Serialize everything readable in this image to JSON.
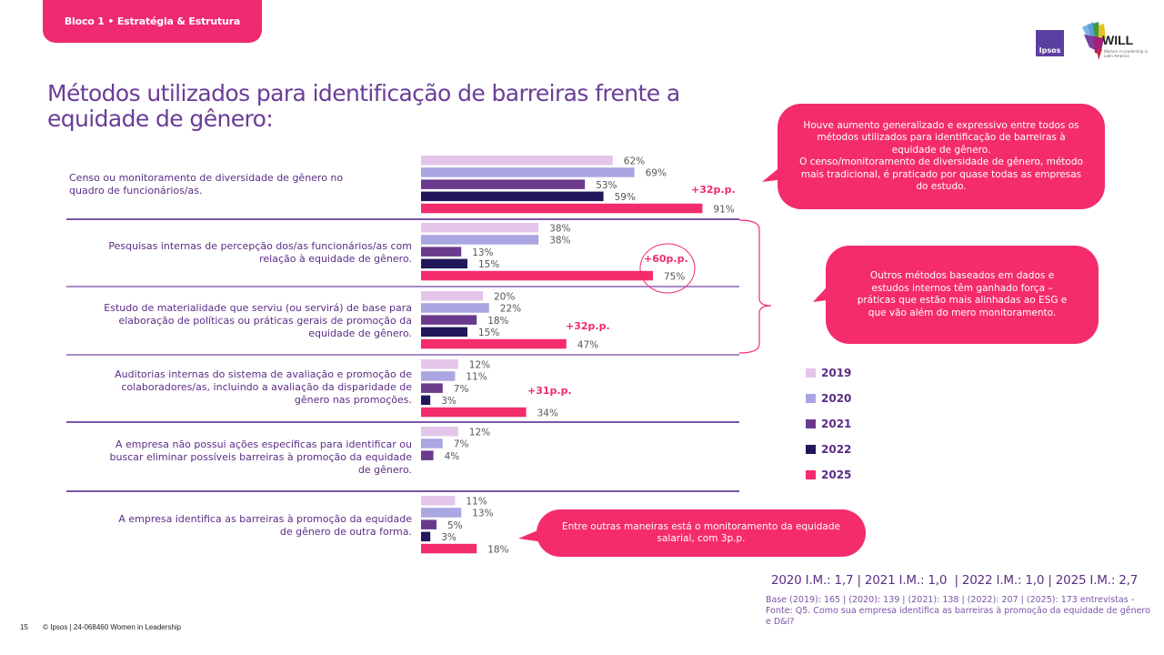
{
  "header": {
    "block_label": "Bloco 1 • Estratégia & Estrutura",
    "logos": {
      "ipsos": "Ipsos",
      "will": "WILL",
      "will_sub": "Women in Leadership in Latin America"
    }
  },
  "title": "Métodos utilizados para identificação de barreiras frente a equidade de gênero:",
  "colors": {
    "2019": "#e3c6ea",
    "2020": "#a9a6e1",
    "2021": "#6a3b8c",
    "2022": "#21175a",
    "2025": "#f42c6c",
    "accent": "#ef2a72",
    "text_purple": "#5b2d86"
  },
  "chart_data": {
    "type": "bar",
    "orientation": "horizontal",
    "title": "Métodos utilizados para identificação de barreiras frente a equidade de gênero:",
    "xlabel": "",
    "ylabel": "",
    "xlim": [
      0,
      100
    ],
    "unit": "%",
    "grid": false,
    "legend_position": "right",
    "series_names": [
      "2019",
      "2020",
      "2021",
      "2022",
      "2025"
    ],
    "categories": [
      "Censo ou monitoramento de diversidade de gênero no quadro de funcionários/as.",
      "Pesquisas internas de percepção dos/as funcionários/as com relação à equidade de gênero.",
      "Estudo de materialidade que serviu (ou servirá) de base para elaboração de políticas ou práticas gerais de promoção da equidade de gênero.",
      "Auditorias internas do sistema de avaliação e promoção de colaboradores/as, incluindo a avaliação da disparidade de gênero nas promoções.",
      "A empresa não possui ações específicas para identificar ou buscar eliminar possíveis barreiras à promoção da equidade de gênero.",
      "A empresa identifica as barreiras à promoção da equidade de gênero de outra forma."
    ],
    "series": [
      {
        "name": "2019",
        "values": [
          62,
          38,
          20,
          12,
          12,
          11
        ]
      },
      {
        "name": "2020",
        "values": [
          69,
          38,
          22,
          11,
          7,
          13
        ]
      },
      {
        "name": "2021",
        "values": [
          53,
          13,
          18,
          7,
          4,
          5
        ]
      },
      {
        "name": "2022",
        "values": [
          59,
          15,
          15,
          3,
          null,
          3
        ]
      },
      {
        "name": "2025",
        "values": [
          91,
          75,
          47,
          34,
          null,
          18
        ]
      }
    ],
    "annotations": [
      {
        "category_index": 0,
        "text": "+32p.p.",
        "circled": false
      },
      {
        "category_index": 1,
        "text": "+60p.p.",
        "circled": true
      },
      {
        "category_index": 2,
        "text": "+32p.p.",
        "circled": false
      },
      {
        "category_index": 3,
        "text": "+31p.p.",
        "circled": false
      }
    ]
  },
  "category_labels": [
    [
      "Censo ou monitoramento de diversidade de gênero no",
      "quadro de funcionários/as."
    ],
    [
      "Pesquisas internas de percepção dos/as funcionários/as com",
      "relação à equidade de gênero."
    ],
    [
      "Estudo de materialidade que serviu (ou servirá) de base para",
      "elaboração de políticas ou práticas gerais de promoção da",
      "equidade de gênero."
    ],
    [
      "Auditorias internas do sistema de avaliação e promoção de",
      "colaboradores/as, incluindo a avaliação da disparidade de",
      "gênero nas promoções."
    ],
    [
      "A empresa não possui ações específicas para identificar ou",
      "buscar eliminar possíveis barreiras à promoção da equidade",
      "de gênero."
    ],
    [
      "A empresa identifica as barreiras à promoção da equidade",
      "de gênero de outra forma."
    ]
  ],
  "callouts": {
    "top": "Houve aumento generalizado e expressivo entre todos os métodos utilizados para identificação de barreiras à equidade de gênero.\nO censo/monitoramento de diversidade de gênero, método mais tradicional, é praticado por quase todas as empresas do estudo.",
    "middle": "Outros métodos baseados em dados e estudos internos têm ganhado força – práticas que estão mais alinhadas ao ESG e que vão além do mero monitoramento.",
    "bottom": "Entre outras maneiras está o monitoramento da equidade salarial, com 3p.p."
  },
  "legend": [
    {
      "label": "2019",
      "color": "#e3c6ea"
    },
    {
      "label": "2020",
      "color": "#a9a6e1"
    },
    {
      "label": "2021",
      "color": "#6a3b8c"
    },
    {
      "label": "2022",
      "color": "#21175a"
    },
    {
      "label": "2025",
      "color": "#f42c6c"
    }
  ],
  "im_line": "2020 I.M.: 1,7 | 2021 I.M.: 1,0  | 2022 I.M.: 1,0 | 2025 I.M.: 2,7",
  "base_note": "Base (2019): 165 | (2020): 139 | (2021): 138 | (2022): 207 | (2025): 173 entrevistas - Fonte: Q5. Como sua empresa identifica as barreiras à promoção da equidade de gênero e D&I?",
  "footer": {
    "page_number": "15",
    "copyright": "© Ipsos | 24-068460 Women in Leadership"
  }
}
